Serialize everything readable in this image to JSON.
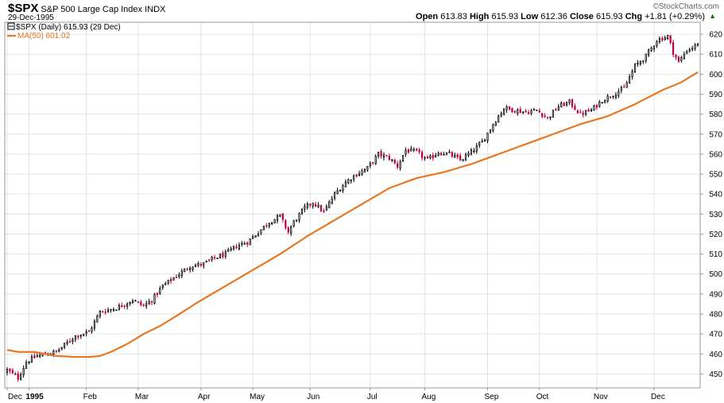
{
  "header": {
    "symbol": "$SPX",
    "name": "S&P 500 Large Cap Index",
    "exchange": "INDX",
    "date": "29-Dec-1995",
    "watermark": "StockCharts.com",
    "open_label": "Open",
    "open": "613.83",
    "high_label": "High",
    "high": "615.93",
    "low_label": "Low",
    "low": "612.36",
    "close_label": "Close",
    "close": "615.93",
    "chg_label": "Chg",
    "chg": "+1.81 (+0.29%)",
    "chg_arrow": "▲"
  },
  "legend": {
    "price_label": "$SPX (Daily) 615.93 (29 Dec)",
    "ma_label": "MA(50) 601.02"
  },
  "colors": {
    "up": "#000000",
    "down": "#c0003c",
    "ma": "#e87722",
    "grid": "#e2e2e2",
    "frame": "#9a9a9a",
    "chg": "#008000"
  },
  "chart_data": {
    "type": "candlestick",
    "ylim": [
      443,
      626
    ],
    "yticks": [
      450,
      460,
      470,
      480,
      490,
      500,
      510,
      520,
      530,
      540,
      550,
      560,
      570,
      580,
      590,
      600,
      610,
      620
    ],
    "x_labels": [
      {
        "label": "Dec",
        "i": 0,
        "bold": false
      },
      {
        "label": "1995",
        "i": 8,
        "bold": true
      },
      {
        "label": "Feb",
        "i": 29,
        "bold": false
      },
      {
        "label": "Mar",
        "i": 48,
        "bold": false
      },
      {
        "label": "Apr",
        "i": 71,
        "bold": false
      },
      {
        "label": "May",
        "i": 90,
        "bold": false
      },
      {
        "label": "Jun",
        "i": 111,
        "bold": false
      },
      {
        "label": "Jul",
        "i": 133,
        "bold": false
      },
      {
        "label": "Aug",
        "i": 153,
        "bold": false
      },
      {
        "label": "Sep",
        "i": 176,
        "bold": false
      },
      {
        "label": "Oct",
        "i": 195,
        "bold": false
      },
      {
        "label": "Nov",
        "i": 216,
        "bold": false
      },
      {
        "label": "Dec",
        "i": 237,
        "bold": false
      }
    ],
    "close_anchors": [
      [
        0,
        452
      ],
      [
        4,
        448
      ],
      [
        7,
        456
      ],
      [
        11,
        459
      ],
      [
        18,
        461
      ],
      [
        25,
        469
      ],
      [
        30,
        471
      ],
      [
        34,
        481
      ],
      [
        40,
        483
      ],
      [
        46,
        487
      ],
      [
        50,
        484
      ],
      [
        53,
        487
      ],
      [
        57,
        494
      ],
      [
        63,
        500
      ],
      [
        67,
        504
      ],
      [
        72,
        505
      ],
      [
        76,
        508
      ],
      [
        80,
        510
      ],
      [
        84,
        514
      ],
      [
        88,
        516
      ],
      [
        92,
        521
      ],
      [
        96,
        526
      ],
      [
        100,
        529
      ],
      [
        103,
        521
      ],
      [
        105,
        526
      ],
      [
        109,
        533
      ],
      [
        112,
        536
      ],
      [
        116,
        531
      ],
      [
        120,
        540
      ],
      [
        124,
        546
      ],
      [
        128,
        550
      ],
      [
        132,
        553
      ],
      [
        136,
        560
      ],
      [
        140,
        558
      ],
      [
        143,
        554
      ],
      [
        146,
        562
      ],
      [
        150,
        561
      ],
      [
        154,
        557
      ],
      [
        158,
        561
      ],
      [
        162,
        560
      ],
      [
        166,
        557
      ],
      [
        170,
        561
      ],
      [
        174,
        566
      ],
      [
        178,
        575
      ],
      [
        182,
        583
      ],
      [
        186,
        582
      ],
      [
        190,
        581
      ],
      [
        194,
        582
      ],
      [
        198,
        578
      ],
      [
        202,
        584
      ],
      [
        206,
        586
      ],
      [
        210,
        580
      ],
      [
        214,
        582
      ],
      [
        218,
        587
      ],
      [
        222,
        590
      ],
      [
        226,
        593
      ],
      [
        230,
        604
      ],
      [
        234,
        609
      ],
      [
        238,
        617
      ],
      [
        242,
        619
      ],
      [
        244,
        611
      ],
      [
        246,
        606
      ],
      [
        249,
        612
      ],
      [
        252,
        614
      ],
      [
        253,
        615.93
      ]
    ],
    "ma_anchors": [
      [
        0,
        462
      ],
      [
        4,
        461
      ],
      [
        10,
        461
      ],
      [
        18,
        459
      ],
      [
        25,
        458.5
      ],
      [
        30,
        458.5
      ],
      [
        34,
        459
      ],
      [
        38,
        461
      ],
      [
        44,
        465
      ],
      [
        50,
        470
      ],
      [
        56,
        474
      ],
      [
        62,
        479
      ],
      [
        70,
        486
      ],
      [
        80,
        494
      ],
      [
        90,
        502
      ],
      [
        100,
        510
      ],
      [
        110,
        519
      ],
      [
        120,
        527
      ],
      [
        130,
        535
      ],
      [
        140,
        543
      ],
      [
        150,
        548
      ],
      [
        160,
        551
      ],
      [
        170,
        555
      ],
      [
        180,
        560
      ],
      [
        190,
        565
      ],
      [
        200,
        570
      ],
      [
        210,
        575
      ],
      [
        220,
        579
      ],
      [
        230,
        585
      ],
      [
        240,
        592
      ],
      [
        247,
        596
      ],
      [
        253,
        601.02
      ]
    ],
    "n_bars": 254
  }
}
